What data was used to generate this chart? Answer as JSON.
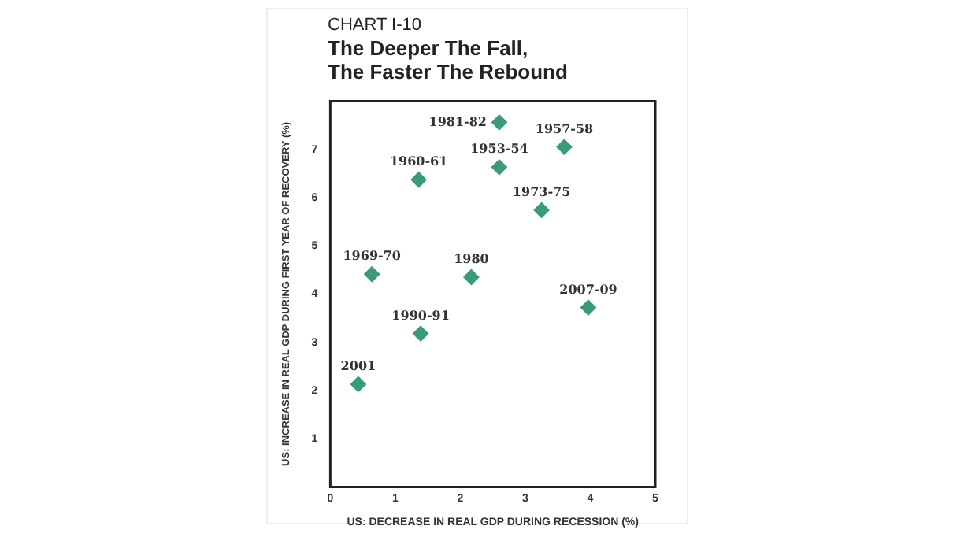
{
  "chart_data": {
    "type": "scatter",
    "subtitle": "CHART I-10",
    "title": "The Deeper The Fall,\nThe Faster The Rebound",
    "xlabel": "US: DECREASE IN REAL GDP DURING RECESSION (%)",
    "ylabel": "US: INCREASE IN REAL GDP DURING FIRST YEAR OF RECOVERY (%)",
    "series": [
      {
        "color": "#3a9b77",
        "x": [
          2.6,
          3.6,
          2.6,
          1.36,
          3.25,
          0.64,
          2.17,
          3.97,
          1.39,
          0.43
        ],
        "values": [
          7.56,
          7.05,
          6.63,
          6.37,
          5.74,
          4.41,
          4.35,
          3.72,
          3.18,
          2.13
        ]
      }
    ],
    "marker": "diamond",
    "xlim": [
      0,
      5
    ],
    "xticks": [
      0,
      1,
      2,
      3,
      4,
      5
    ],
    "ylim": [
      0,
      8
    ],
    "yticks": [
      1,
      2,
      3,
      4,
      5,
      6,
      7
    ],
    "grid": false,
    "legend": false,
    "annotations": [
      {
        "text": "1981-82",
        "x": 2.6,
        "y": 7.56
      },
      {
        "text": "1957-58",
        "x": 3.6,
        "y": 7.05
      },
      {
        "text": "1953-54",
        "x": 2.6,
        "y": 6.63
      },
      {
        "text": "1960-61",
        "x": 1.36,
        "y": 6.37
      },
      {
        "text": "1973-75",
        "x": 3.25,
        "y": 5.74
      },
      {
        "text": "1969-70",
        "x": 0.64,
        "y": 4.41
      },
      {
        "text": "1980",
        "x": 2.17,
        "y": 4.35
      },
      {
        "text": "2007-09",
        "x": 3.97,
        "y": 3.72
      },
      {
        "text": "1990-91",
        "x": 1.39,
        "y": 3.18
      },
      {
        "text": "2001",
        "x": 0.43,
        "y": 2.13
      }
    ]
  }
}
